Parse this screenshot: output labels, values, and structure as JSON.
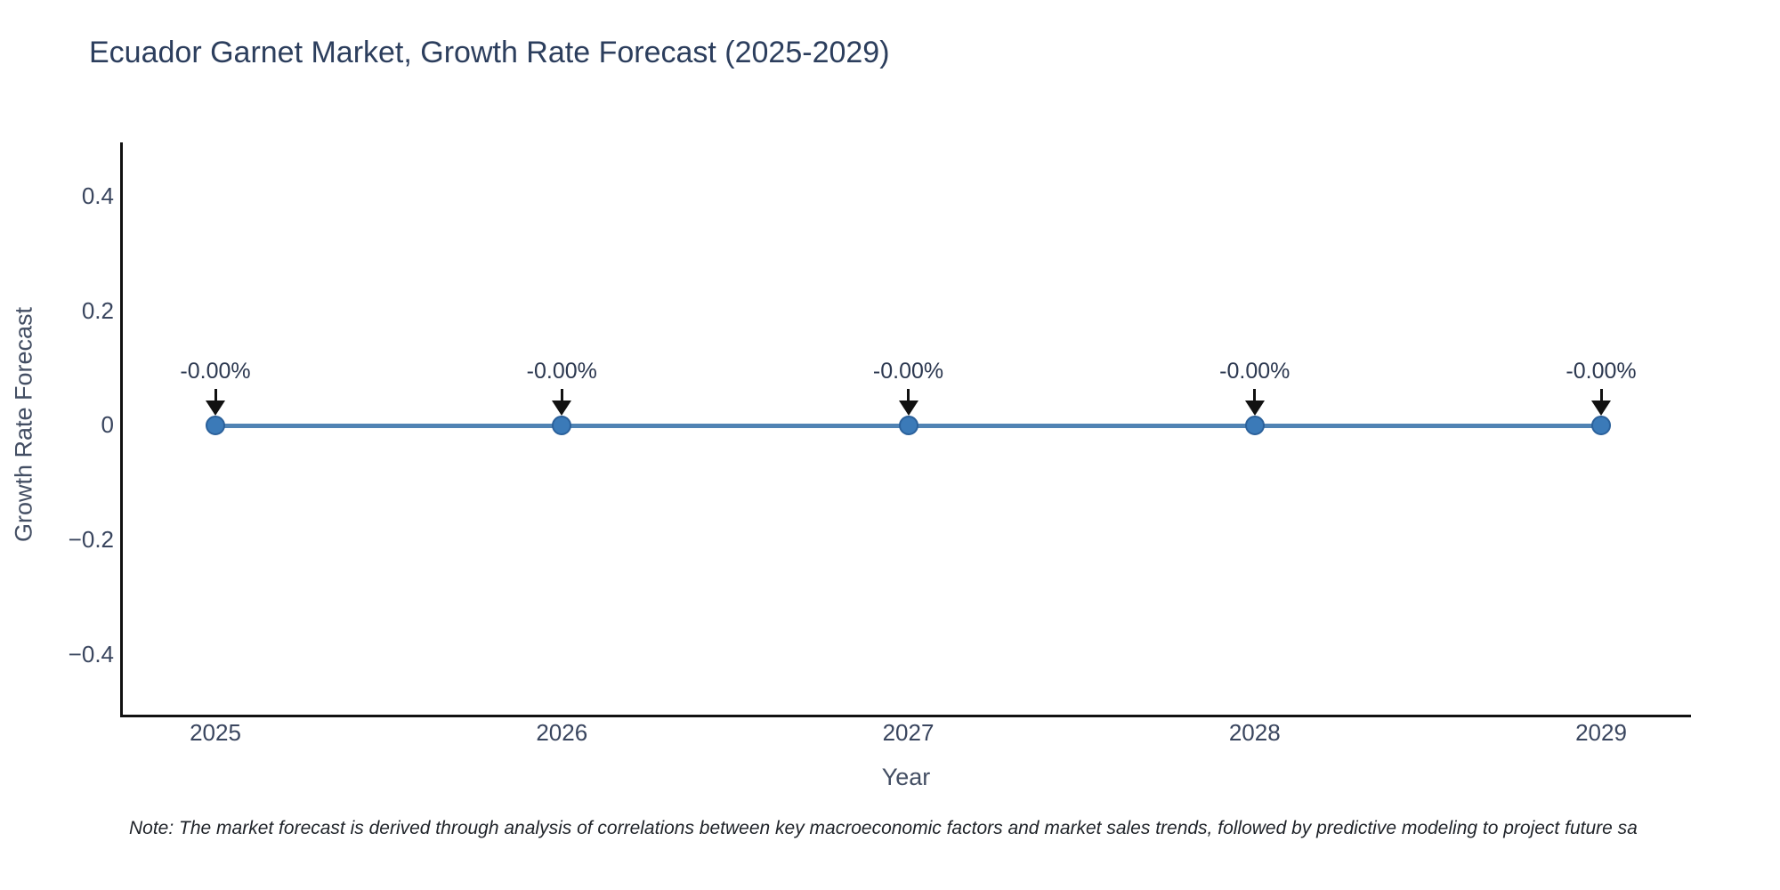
{
  "page": {
    "background": "#ffffff"
  },
  "chart": {
    "note": "Note: The market forecast is derived through analysis of correlations between key macroeconomic factors and market sales trends, followed by predictive modeling to project future sa",
    "colors": {
      "title_text": "#2c3e5d",
      "axis_text": "#434e63",
      "tick_text": "#39455e",
      "axis_line": "#111111",
      "line": "#5083b4",
      "marker": "#3b7ab8",
      "marker_edge": "#2b619b",
      "annotation_text": "#2c3850",
      "annotation_arrow": "#111111",
      "note_text": "#1f2329"
    }
  },
  "chart_data": {
    "type": "line",
    "title": "Ecuador Garnet Market, Growth Rate Forecast (2025-2029)",
    "xlabel": "Year",
    "ylabel": "Growth Rate Forecast",
    "x": [
      2025,
      2026,
      2027,
      2028,
      2029
    ],
    "values": [
      0,
      0,
      0,
      0,
      0
    ],
    "point_labels": [
      "-0.00%",
      "-0.00%",
      "-0.00%",
      "-0.00%",
      "-0.00%"
    ],
    "xtick_labels": [
      "2025",
      "2026",
      "2027",
      "2028",
      "2029"
    ],
    "yticks": [
      0.4,
      0.2,
      0,
      -0.2,
      -0.4
    ],
    "ytick_labels": [
      "0.4",
      "0.2",
      "0",
      "−0.2",
      "−0.4"
    ],
    "ylim": [
      -0.5,
      0.5
    ],
    "grid": false,
    "legend": "none",
    "marker_style": "circle",
    "annotation_style": "down-arrow"
  }
}
